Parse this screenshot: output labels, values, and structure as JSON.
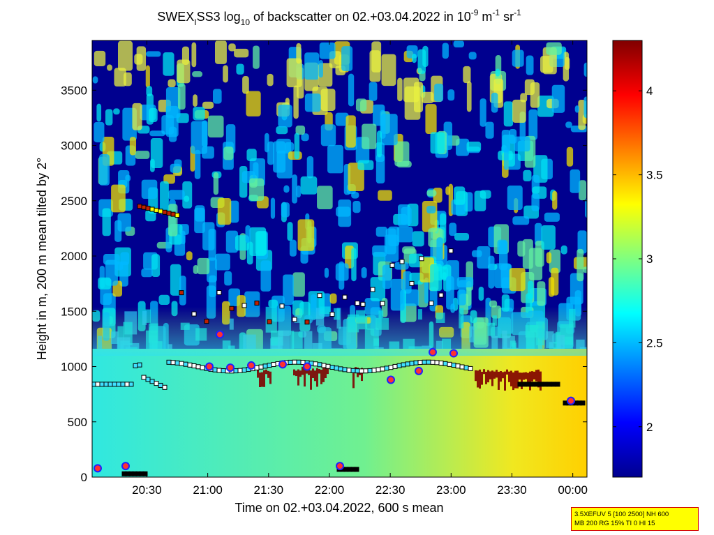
{
  "chart_data": {
    "type": "heatmap",
    "title": {
      "part1": "SWEX",
      "sub1": "I",
      "part2": "SS3 log",
      "sub2": "10",
      "part3": " of backscatter on 02.+03.04.2022 in 10",
      "sup1": "-9",
      "part4": " m",
      "sup2": "-1",
      "part5": " sr",
      "sup3": "-1"
    },
    "xlabel": "Time on 02.+03.04.2022, 600 s mean",
    "ylabel": "Height in m, 200 m mean tilted by 2°",
    "x_ticks": [
      "20:30",
      "21:00",
      "21:30",
      "22:00",
      "22:30",
      "23:00",
      "23:30",
      "00:00"
    ],
    "x_tick_minutes": [
      1230,
      1260,
      1290,
      1320,
      1350,
      1380,
      1410,
      1440
    ],
    "xlim_minutes": [
      1203,
      1447
    ],
    "y_ticks": [
      "0",
      "500",
      "1000",
      "1500",
      "2000",
      "2500",
      "3000",
      "3500"
    ],
    "y_tick_values": [
      0,
      500,
      1000,
      1500,
      2000,
      2500,
      3000,
      3500
    ],
    "ylim": [
      0,
      3950
    ],
    "colorbar": {
      "ticks": [
        "2",
        "2.5",
        "3",
        "3.5",
        "4"
      ],
      "tick_values": [
        2,
        2.5,
        3,
        3.5,
        4
      ],
      "range": [
        1.7,
        4.3
      ],
      "colormap": "jet"
    },
    "colors": {
      "background_low": "#00008f",
      "cyan": "#00e8ff",
      "yellow": "#f0e000",
      "dark_red": "#800000"
    },
    "layers": [
      {
        "name": "cloud base",
        "color": "#800000"
      },
      {
        "name": "mixing layer",
        "color": "#40e0ff"
      },
      {
        "name": "boundary layer",
        "color": "#ffffff"
      }
    ]
  },
  "info_box": {
    "line1": "3.5XEFUV 5 [100 2500] NH 600",
    "line2": "MB 200 RG 15% TI 0 HI 15"
  }
}
